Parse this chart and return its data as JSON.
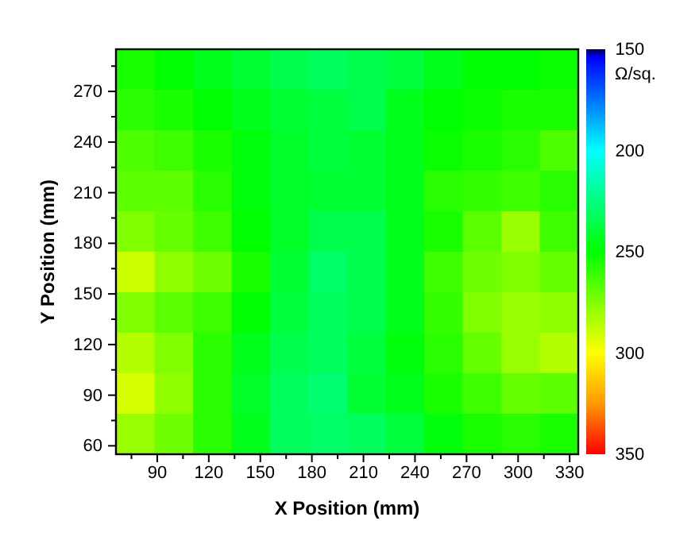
{
  "chart_data": {
    "type": "heatmap",
    "xlabel": "X Position (mm)",
    "ylabel": "Y Position (mm)",
    "clabel": "Ω/sq.",
    "xlim": [
      66,
      335
    ],
    "ylim": [
      55,
      295
    ],
    "xticks": [
      {
        "value": 75,
        "label": null
      },
      90,
      {
        "value": 105,
        "label": null
      },
      120,
      {
        "value": 135,
        "label": null
      },
      150,
      {
        "value": 165,
        "label": null
      },
      180,
      {
        "value": 195,
        "label": null
      },
      210,
      {
        "value": 225,
        "label": null
      },
      240,
      {
        "value": 255,
        "label": null
      },
      270,
      {
        "value": 285,
        "label": null
      },
      300,
      {
        "value": 315,
        "label": null
      },
      330
    ],
    "yticks": [
      60,
      {
        "value": 75,
        "label": null
      },
      90,
      {
        "value": 105,
        "label": null
      },
      120,
      {
        "value": 135,
        "label": null
      },
      150,
      {
        "value": 165,
        "label": null
      },
      180,
      {
        "value": 195,
        "label": null
      },
      210,
      {
        "value": 225,
        "label": null
      },
      240,
      {
        "value": 255,
        "label": null
      },
      270,
      {
        "value": 285,
        "label": null
      }
    ],
    "clim": [
      150,
      350
    ],
    "cticks": [
      150,
      200,
      250,
      300,
      350
    ],
    "cells": [
      [
        255,
        250,
        245,
        240,
        235,
        232,
        235,
        238,
        245,
        250,
        250,
        252
      ],
      [
        258,
        255,
        250,
        245,
        240,
        238,
        235,
        245,
        250,
        252,
        255,
        255
      ],
      [
        265,
        262,
        255,
        248,
        242,
        238,
        240,
        245,
        252,
        255,
        258,
        265
      ],
      [
        268,
        268,
        258,
        248,
        242,
        240,
        240,
        245,
        258,
        260,
        262,
        258
      ],
      [
        275,
        270,
        262,
        250,
        242,
        235,
        235,
        245,
        255,
        268,
        280,
        262
      ],
      [
        290,
        278,
        272,
        255,
        240,
        230,
        235,
        245,
        262,
        272,
        275,
        270
      ],
      [
        275,
        268,
        262,
        250,
        238,
        232,
        235,
        245,
        260,
        275,
        280,
        278
      ],
      [
        285,
        275,
        258,
        245,
        235,
        232,
        238,
        248,
        258,
        270,
        280,
        285
      ],
      [
        292,
        278,
        258,
        242,
        232,
        228,
        240,
        245,
        255,
        262,
        270,
        268
      ],
      [
        280,
        272,
        258,
        245,
        232,
        230,
        232,
        238,
        248,
        255,
        258,
        255
      ]
    ]
  }
}
